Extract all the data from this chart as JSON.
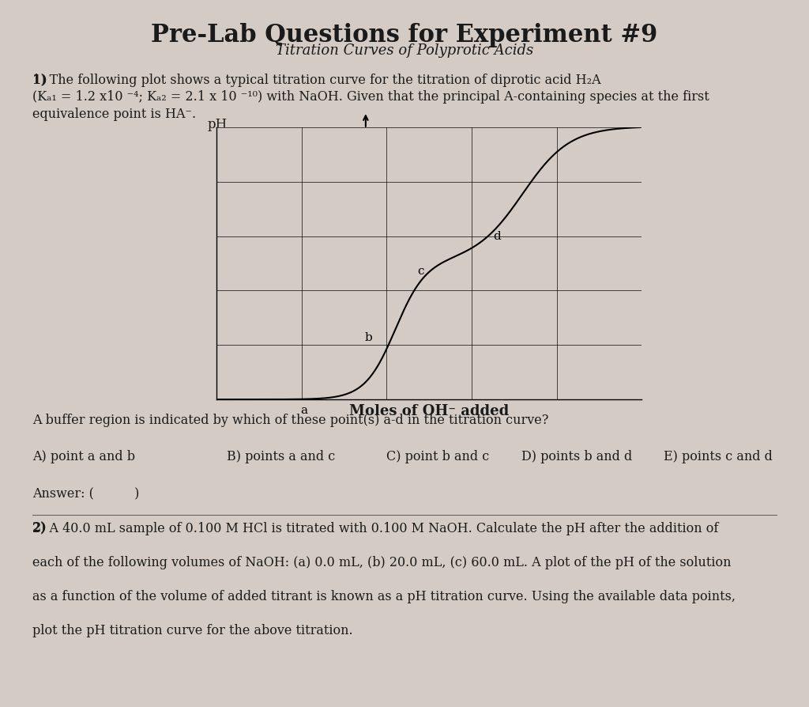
{
  "title": "Pre-Lab Questions for Experiment #9",
  "subtitle": "Titration Curves of Polyprotic Acids",
  "background_color": "#d4ccc4",
  "text_color": "#1a1a1a",
  "xlabel": "Moles of OH⁻ added",
  "ylabel": "pH",
  "question_text": "A buffer region is indicated by which of these point(s) a-d in the titration curve?",
  "choices_A": "A) point a and b",
  "choices_B": "B) points a and c",
  "choices_C": "C) point b and c",
  "choices_D": "D) points b and d",
  "choices_E": "E) points c and d",
  "answer_text": "Answer: (          )",
  "q1_line1": "1) The following plot shows a typical titration curve for the titration of diprotic acid H₂A",
  "q1_line2": "(Kₐ₁ = 1.2 x10 ⁻⁴; Kₐ₂ = 2.1 x 10 ⁻¹⁰) with NaOH. Given that the principal A-containing species at the first",
  "q1_line3": "equivalence point is HA⁻.",
  "q2_line1": "2) A 40.0 mL sample of 0.100 M HCl is titrated with 0.100 M NaOH. Calculate the pH after the addition of",
  "q2_line2": "each of the following volumes of NaOH: (a) 0.0 mL, (b) 20.0 mL, (c) 60.0 mL. A plot of the pH of the solution",
  "q2_line3": "as a function of the volume of added titrant is known as a pH titration curve. Using the available data points,",
  "q2_line4": "plot the pH titration curve for the above titration."
}
